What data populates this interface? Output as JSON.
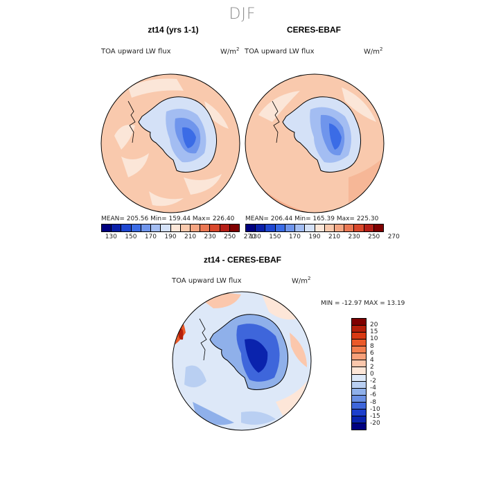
{
  "main_title": "DJF",
  "panels": [
    {
      "title": "zt14 (yrs 1-1)",
      "variable": "TOA upward LW flux",
      "units_base": "W/m",
      "units_sup": "2",
      "stats": "MEAN= 205.56   Min= 159.44   Max= 226.40"
    },
    {
      "title": "CERES-EBAF",
      "variable": "TOA upward LW flux",
      "units_base": "W/m",
      "units_sup": "2",
      "stats": "MEAN= 206.44   Min= 165.39   Max= 225.30"
    }
  ],
  "diff_panel": {
    "title": "zt14 - CERES-EBAF",
    "variable": "TOA upward LW flux",
    "units_base": "W/m",
    "units_sup": "2",
    "stats": "MIN = -12.97  MAX =  13.19"
  },
  "abs_colorbar": {
    "colors": [
      "#00007f",
      "#0a1fa8",
      "#1f47d1",
      "#3b6ce6",
      "#6f95ec",
      "#a3bdf2",
      "#d4e1f7",
      "#fbe6d8",
      "#f9c9ad",
      "#f4a582",
      "#ea7753",
      "#d9482c",
      "#b51f17",
      "#7f0000"
    ],
    "tick_labels": [
      "130",
      "150",
      "170",
      "190",
      "210",
      "230",
      "250",
      "270"
    ]
  },
  "diff_colorbar": {
    "colors": [
      "#7f0000",
      "#b51f0a",
      "#d93a14",
      "#ea5a2a",
      "#f27e4f",
      "#f7a07a",
      "#fbc7ac",
      "#fde6d8",
      "#dde8f8",
      "#b9cff2",
      "#8fb0ea",
      "#6a8fe3",
      "#3e66db",
      "#1d3fcc",
      "#0a23ad",
      "#000080"
    ],
    "tick_labels": [
      "20",
      "15",
      "10",
      "8",
      "6",
      "4",
      "2",
      "0",
      "-2",
      "-4",
      "-6",
      "-8",
      "-10",
      "-15",
      "-20"
    ]
  },
  "colors": {
    "ocean_base": "#f9c9ad",
    "diff_base": "#dde8f8"
  }
}
